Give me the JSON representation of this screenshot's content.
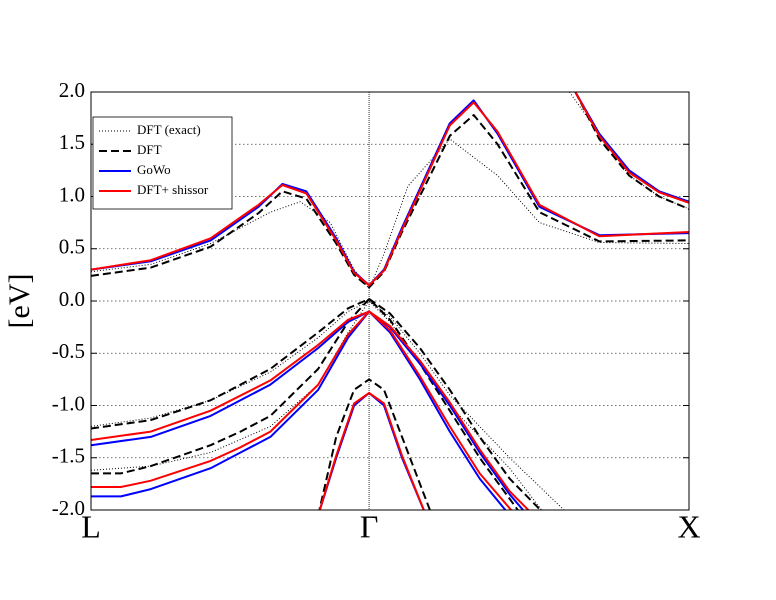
{
  "chart_data": {
    "type": "line",
    "y_label": "[eV]",
    "xlim": [
      0,
      1
    ],
    "ylim": [
      -2,
      2
    ],
    "xticks": [
      {
        "value": 0,
        "label": "L"
      },
      {
        "value": 0.465,
        "label": "Γ"
      },
      {
        "value": 1,
        "label": "X"
      }
    ],
    "yticks": [
      {
        "value": -2,
        "label": "-2.0"
      },
      -1.5,
      {
        "value": -1,
        "label": "-1.0"
      },
      -0.5,
      {
        "value": 0,
        "label": "0.0"
      },
      0.5,
      {
        "value": 1,
        "label": "1.0"
      },
      1.5,
      {
        "value": 2,
        "label": "2.0"
      }
    ],
    "grid": true,
    "legend": "upper left",
    "series": [
      {
        "name": "DFT (exact)",
        "color": "#000000",
        "line_style": "dotted",
        "x": [
          0,
          0.1,
          0.2,
          0.3,
          0.35,
          0.4,
          0.44,
          0.465,
          0.49,
          0.53,
          0.6,
          0.68,
          0.75,
          0.85,
          1.0,
          null,
          0.8,
          0.85,
          0.9,
          0.95,
          1.0,
          null,
          0,
          0.1,
          0.2,
          0.3,
          0.38,
          0.43,
          0.465,
          0.5,
          0.55,
          0.6,
          0.7,
          0.8,
          null,
          0,
          0.1,
          0.2,
          0.3,
          0.38,
          0.43,
          0.465,
          0.5,
          0.55,
          0.6,
          0.7,
          0.76
        ],
        "values": [
          0.28,
          0.35,
          0.55,
          0.85,
          0.95,
          0.75,
          0.3,
          0.12,
          0.45,
          1.1,
          1.55,
          1.2,
          0.75,
          0.56,
          0.55,
          null,
          2.0,
          1.6,
          1.2,
          1.0,
          0.88,
          null,
          -1.2,
          -1.12,
          -0.95,
          -0.68,
          -0.35,
          -0.1,
          0.0,
          -0.15,
          -0.5,
          -0.9,
          -1.5,
          -2.05,
          null,
          -1.62,
          -1.58,
          -1.45,
          -1.2,
          -0.8,
          -0.3,
          0.0,
          -0.2,
          -0.6,
          -1.0,
          -1.6,
          -2.05
        ]
      },
      {
        "name": "DFT",
        "color": "#000000",
        "line_style": "dashed",
        "x": [
          0,
          0.1,
          0.2,
          0.28,
          0.32,
          0.36,
          0.41,
          0.44,
          0.465,
          0.49,
          0.52,
          0.56,
          0.6,
          0.64,
          0.68,
          0.75,
          0.85,
          1.0,
          null,
          0.81,
          0.85,
          0.9,
          0.95,
          1.0,
          null,
          0,
          0.1,
          0.2,
          0.3,
          0.38,
          0.43,
          0.465,
          0.5,
          0.55,
          0.6,
          0.65,
          0.7,
          0.76,
          null,
          0,
          0.05,
          0.1,
          0.2,
          0.25,
          0.3,
          0.38,
          0.43,
          0.465,
          0.5,
          0.55,
          0.6,
          0.65,
          0.72,
          null,
          0.38,
          0.41,
          0.44,
          0.465,
          0.49,
          0.52,
          0.57
        ],
        "values": [
          0.24,
          0.32,
          0.52,
          0.84,
          1.05,
          0.98,
          0.55,
          0.25,
          0.13,
          0.28,
          0.66,
          1.12,
          1.58,
          1.78,
          1.5,
          0.85,
          0.57,
          0.58,
          null,
          2.0,
          1.55,
          1.2,
          1.0,
          0.88,
          null,
          -1.22,
          -1.14,
          -0.95,
          -0.65,
          -0.3,
          -0.07,
          0.02,
          -0.12,
          -0.45,
          -0.85,
          -1.3,
          -1.7,
          -2.05,
          null,
          -1.65,
          -1.65,
          -1.58,
          -1.38,
          -1.25,
          -1.1,
          -0.65,
          -0.2,
          0.02,
          -0.18,
          -0.6,
          -1.05,
          -1.5,
          -2.05,
          null,
          -2.05,
          -1.3,
          -0.85,
          -0.75,
          -0.85,
          -1.3,
          -2.05
        ]
      },
      {
        "name": "GoWo",
        "color": "#0000ff",
        "line_style": "solid",
        "x": [
          0,
          0.1,
          0.2,
          0.28,
          0.32,
          0.36,
          0.41,
          0.44,
          0.465,
          0.49,
          0.52,
          0.56,
          0.6,
          0.64,
          0.68,
          0.75,
          0.85,
          1.0,
          null,
          0.81,
          0.85,
          0.9,
          0.95,
          1.0,
          null,
          0,
          0.1,
          0.2,
          0.3,
          0.38,
          0.43,
          0.465,
          0.5,
          0.55,
          0.6,
          0.65,
          0.7,
          0.73,
          null,
          0,
          0.05,
          0.1,
          0.2,
          0.25,
          0.3,
          0.38,
          0.43,
          0.465,
          0.5,
          0.55,
          0.6,
          0.65,
          0.7,
          null,
          0.38,
          0.41,
          0.44,
          0.465,
          0.49,
          0.52,
          0.56
        ],
        "values": [
          0.3,
          0.38,
          0.58,
          0.9,
          1.12,
          1.05,
          0.6,
          0.28,
          0.15,
          0.3,
          0.7,
          1.2,
          1.7,
          1.92,
          1.6,
          0.9,
          0.63,
          0.65,
          null,
          2.0,
          1.6,
          1.25,
          1.05,
          0.95,
          null,
          -1.38,
          -1.3,
          -1.1,
          -0.8,
          -0.45,
          -0.2,
          -0.1,
          -0.25,
          -0.6,
          -1.0,
          -1.45,
          -1.85,
          -2.05,
          null,
          -1.87,
          -1.87,
          -1.8,
          -1.6,
          -1.45,
          -1.3,
          -0.85,
          -0.35,
          -0.1,
          -0.3,
          -0.75,
          -1.25,
          -1.7,
          -2.05,
          null,
          -2.05,
          -1.5,
          -1.0,
          -0.88,
          -1.0,
          -1.5,
          -2.05
        ]
      },
      {
        "name": "DFT+ shissor",
        "color": "#ff0000",
        "line_style": "solid",
        "x": [
          0,
          0.1,
          0.2,
          0.28,
          0.32,
          0.36,
          0.41,
          0.44,
          0.465,
          0.49,
          0.52,
          0.56,
          0.6,
          0.64,
          0.68,
          0.75,
          0.85,
          1.0,
          null,
          0.81,
          0.85,
          0.9,
          0.95,
          1.0,
          null,
          0,
          0.1,
          0.2,
          0.3,
          0.38,
          0.43,
          0.465,
          0.5,
          0.55,
          0.6,
          0.65,
          0.7,
          0.74,
          null,
          0,
          0.05,
          0.1,
          0.2,
          0.25,
          0.3,
          0.38,
          0.43,
          0.465,
          0.5,
          0.55,
          0.6,
          0.65,
          0.71,
          null,
          0.38,
          0.41,
          0.44,
          0.465,
          0.49,
          0.52,
          0.56
        ],
        "values": [
          0.3,
          0.39,
          0.6,
          0.92,
          1.11,
          1.03,
          0.58,
          0.27,
          0.15,
          0.29,
          0.68,
          1.18,
          1.68,
          1.9,
          1.62,
          0.92,
          0.62,
          0.66,
          null,
          2.0,
          1.58,
          1.23,
          1.04,
          0.94,
          null,
          -1.33,
          -1.25,
          -1.05,
          -0.76,
          -0.42,
          -0.18,
          -0.1,
          -0.24,
          -0.57,
          -0.97,
          -1.42,
          -1.82,
          -2.05,
          null,
          -1.78,
          -1.78,
          -1.72,
          -1.53,
          -1.4,
          -1.25,
          -0.8,
          -0.32,
          -0.1,
          -0.28,
          -0.72,
          -1.2,
          -1.65,
          -2.05,
          null,
          -2.05,
          -1.48,
          -0.98,
          -0.88,
          -0.98,
          -1.48,
          -2.05
        ]
      }
    ]
  }
}
